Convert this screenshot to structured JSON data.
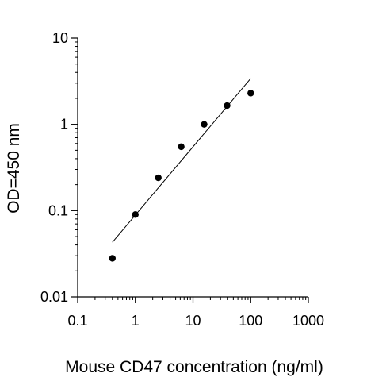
{
  "chart_data": {
    "type": "scatter",
    "title": "",
    "xlabel": "Mouse CD47 concentration (ng/ml)",
    "ylabel": "OD=450 nm",
    "x_scale": "log",
    "y_scale": "log",
    "xlim": [
      0.1,
      1000
    ],
    "ylim": [
      0.01,
      10
    ],
    "x_ticks": [
      0.1,
      1,
      10,
      100,
      1000
    ],
    "x_tick_labels": [
      "0.1",
      "1",
      "10",
      "100",
      "1000"
    ],
    "y_ticks": [
      0.01,
      0.1,
      1,
      10
    ],
    "y_tick_labels": [
      "0.01",
      "0.1",
      "1",
      "10"
    ],
    "grid": false,
    "legend": "none",
    "series": [
      {
        "kind": "points",
        "x": [
          0.4,
          1,
          2.5,
          6.25,
          15.6,
          39,
          100
        ],
        "y": [
          0.028,
          0.09,
          0.24,
          0.55,
          1.0,
          1.65,
          2.3
        ]
      },
      {
        "kind": "fit-line",
        "x": [
          0.4,
          100
        ],
        "y": [
          0.043,
          3.4
        ]
      }
    ],
    "colors": {
      "marker": "#000000",
      "line": "#000000",
      "axis": "#000000"
    }
  }
}
